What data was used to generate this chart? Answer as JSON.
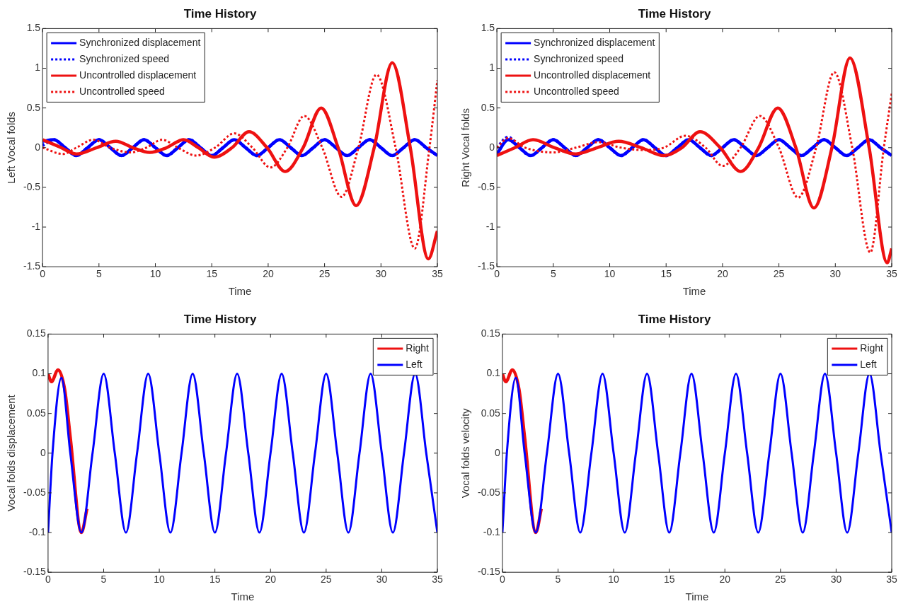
{
  "chart_data": [
    {
      "type": "line",
      "title": "Time History",
      "xlabel": "Time",
      "ylabel": "Left Vocal folds",
      "xlim": [
        0,
        35
      ],
      "xticks": [
        0,
        5,
        10,
        15,
        20,
        25,
        30,
        35
      ],
      "ylim": [
        -1.5,
        1.5
      ],
      "yticks": [
        -1.5,
        -1,
        -0.5,
        0,
        0.5,
        1,
        1.5
      ],
      "legend": "top left",
      "marker": "none",
      "x": [
        0,
        1,
        2,
        3,
        4,
        5,
        6,
        7,
        8,
        9,
        10,
        11,
        12,
        13,
        14,
        15,
        16,
        17,
        18,
        19,
        20,
        21,
        22,
        23,
        24,
        25,
        26,
        27,
        28,
        29,
        30,
        31,
        32,
        33,
        34,
        35
      ],
      "series": [
        {
          "name": "Synchronized displacement",
          "color": "#0000ff",
          "line_style": "solid",
          "values": [
            0.08,
            0.1,
            0,
            -0.1,
            0,
            0.1,
            0,
            -0.1,
            0,
            0.1,
            0,
            -0.1,
            0,
            0.1,
            0,
            -0.1,
            0,
            0.1,
            0,
            -0.1,
            0,
            0.1,
            0,
            -0.1,
            0,
            0.1,
            0,
            -0.1,
            0,
            0.1,
            0,
            -0.1,
            0,
            0.1,
            0,
            -0.1
          ]
        },
        {
          "name": "Synchronized speed",
          "color": "#0000ff",
          "line_style": "dotted",
          "values": [
            0.03,
            0.1,
            0,
            -0.1,
            0,
            0.1,
            0,
            -0.1,
            0,
            0.1,
            0,
            -0.1,
            0,
            0.1,
            0,
            -0.1,
            0,
            0.1,
            0,
            -0.1,
            0,
            0.1,
            0,
            -0.1,
            0,
            0.1,
            0,
            -0.1,
            0,
            0.1,
            0,
            -0.1,
            0,
            0.1,
            0,
            -0.1
          ]
        },
        {
          "name": "Uncontrolled displacement",
          "color": "#ee1111",
          "line_style": "solid",
          "x": [
            0,
            1.5,
            3,
            4.8,
            6.5,
            8,
            9.5,
            11,
            12.5,
            13.8,
            15.2,
            16.8,
            18.3,
            19.9,
            21.5,
            23.1,
            24.7,
            26.2,
            27.8,
            29.4,
            31,
            32.6,
            34.2,
            35
          ],
          "values": [
            0.1,
            0.01,
            -0.08,
            0,
            0.08,
            0,
            -0.06,
            0,
            0.1,
            0,
            -0.12,
            0,
            0.2,
            0,
            -0.3,
            0,
            0.5,
            0,
            -0.73,
            0,
            1.07,
            0,
            -1.4,
            -1.05
          ]
        },
        {
          "name": "Uncontrolled speed",
          "color": "#ee1111",
          "line_style": "dotted",
          "x": [
            0,
            1.8,
            3,
            4.5,
            6,
            7.8,
            9.2,
            10.6,
            12,
            13.6,
            15.3,
            17,
            18.6,
            20.2,
            21.7,
            23.2,
            24.8,
            26.5,
            28,
            29.6,
            31.3,
            33,
            34.3,
            35
          ],
          "values": [
            0,
            -0.08,
            0,
            0.1,
            0,
            -0.06,
            0,
            0.1,
            0,
            -0.1,
            0,
            0.18,
            0,
            -0.25,
            0,
            0.4,
            0,
            -0.62,
            0,
            0.92,
            0,
            -1.27,
            0,
            0.85
          ]
        }
      ]
    },
    {
      "type": "line",
      "title": "Time History",
      "xlabel": "Time",
      "ylabel": "Right Vocal folds",
      "xlim": [
        0,
        35
      ],
      "xticks": [
        0,
        5,
        10,
        15,
        20,
        25,
        30,
        35
      ],
      "ylim": [
        -1.5,
        1.5
      ],
      "yticks": [
        -1.5,
        -1,
        -0.5,
        0,
        0.5,
        1,
        1.5
      ],
      "legend": "top left",
      "marker": "none",
      "x": [
        0,
        1,
        2,
        3,
        4,
        5,
        6,
        7,
        8,
        9,
        10,
        11,
        12,
        13,
        14,
        15,
        16,
        17,
        18,
        19,
        20,
        21,
        22,
        23,
        24,
        25,
        26,
        27,
        28,
        29,
        30,
        31,
        32,
        33,
        34,
        35
      ],
      "series": [
        {
          "name": "Synchronized displacement",
          "color": "#0000ff",
          "line_style": "solid",
          "values": [
            -0.08,
            0.1,
            0,
            -0.1,
            0,
            0.1,
            0,
            -0.1,
            0,
            0.1,
            0,
            -0.1,
            0,
            0.1,
            0,
            -0.1,
            0,
            0.1,
            0,
            -0.1,
            0,
            0.1,
            0,
            -0.1,
            0,
            0.1,
            0,
            -0.1,
            0,
            0.1,
            0,
            -0.1,
            0,
            0.1,
            0,
            -0.1
          ]
        },
        {
          "name": "Synchronized speed",
          "color": "#0000ff",
          "line_style": "dotted",
          "values": [
            0,
            0.13,
            0,
            -0.1,
            0,
            0.1,
            0,
            -0.1,
            0,
            0.1,
            0,
            -0.1,
            0,
            0.1,
            0,
            -0.1,
            0,
            0.1,
            0,
            -0.1,
            0,
            0.1,
            0,
            -0.1,
            0,
            0.1,
            0,
            -0.1,
            0,
            0.1,
            0,
            -0.1,
            0,
            0.1,
            0,
            -0.1
          ]
        },
        {
          "name": "Uncontrolled displacement",
          "color": "#ee1111",
          "line_style": "solid",
          "x": [
            0,
            1.6,
            3.2,
            5.1,
            7,
            8.9,
            10.8,
            12.8,
            14.8,
            16.4,
            18,
            19.8,
            21.6,
            23.2,
            24.9,
            26.5,
            28.1,
            29.7,
            31.3,
            33,
            34.6,
            35
          ],
          "values": [
            -0.1,
            0,
            0.1,
            0,
            -0.08,
            0,
            0.08,
            0,
            -0.1,
            0,
            0.2,
            0,
            -0.3,
            0,
            0.5,
            0,
            -0.76,
            0,
            1.13,
            0,
            -1.45,
            -1.27
          ]
        },
        {
          "name": "Uncontrolled speed",
          "color": "#ee1111",
          "line_style": "dotted",
          "x": [
            0,
            1,
            2.5,
            5,
            7,
            9,
            11,
            13,
            14.8,
            16.7,
            18.5,
            20,
            21.6,
            23.3,
            25,
            26.7,
            28.3,
            29.9,
            31.5,
            33.1,
            34.3,
            35
          ],
          "values": [
            0,
            0.12,
            0,
            -0.06,
            0,
            0.07,
            0,
            -0.03,
            0,
            0.15,
            0,
            -0.23,
            0,
            0.4,
            0,
            -0.63,
            0,
            0.95,
            0,
            -1.32,
            0,
            0.68
          ]
        }
      ]
    },
    {
      "type": "line",
      "title": "Time History",
      "xlabel": "Time",
      "ylabel": "Vocal folds displacement",
      "xlim": [
        0,
        35
      ],
      "xticks": [
        0,
        5,
        10,
        15,
        20,
        25,
        30,
        35
      ],
      "ylim": [
        -0.15,
        0.15
      ],
      "yticks": [
        -0.15,
        -0.1,
        -0.05,
        0,
        0.05,
        0.1,
        0.15
      ],
      "legend": "top right",
      "marker": "none",
      "series": [
        {
          "name": "Right",
          "color": "#ee1111",
          "x": [
            0,
            0.3,
            0.9,
            1.5,
            2,
            3,
            3.5
          ],
          "values": [
            0.1,
            0.09,
            0.105,
            0.08,
            0.02,
            -0.1,
            -0.07
          ]
        },
        {
          "name": "Left",
          "color": "#0000ff",
          "x": [
            0,
            0.4,
            1.2,
            2,
            3,
            4,
            5,
            6,
            7,
            8,
            9,
            10,
            11,
            12,
            13,
            14,
            15,
            16,
            17,
            18,
            19,
            20,
            21,
            22,
            23,
            24,
            25,
            26,
            27,
            28,
            29,
            30,
            31,
            32,
            33,
            34,
            35
          ],
          "values": [
            -0.1,
            0,
            0.095,
            0,
            -0.1,
            0,
            0.1,
            0,
            -0.1,
            0,
            0.1,
            0,
            -0.1,
            0,
            0.1,
            0,
            -0.1,
            0,
            0.1,
            0,
            -0.1,
            0,
            0.1,
            0,
            -0.1,
            0,
            0.1,
            0,
            -0.1,
            0,
            0.1,
            0,
            -0.1,
            0,
            0.1,
            0,
            -0.1
          ]
        }
      ]
    },
    {
      "type": "line",
      "title": "Time History",
      "xlabel": "Time",
      "ylabel": "Vocal folds velocity",
      "xlim": [
        0,
        35
      ],
      "xticks": [
        0,
        5,
        10,
        15,
        20,
        25,
        30,
        35
      ],
      "ylim": [
        -0.15,
        0.15
      ],
      "yticks": [
        -0.15,
        -0.1,
        -0.05,
        0,
        0.05,
        0.1,
        0.15
      ],
      "legend": "top right",
      "marker": "none",
      "series": [
        {
          "name": "Right",
          "color": "#ee1111",
          "x": [
            0,
            0.3,
            0.9,
            1.5,
            2,
            3,
            3.5
          ],
          "values": [
            0.1,
            0.09,
            0.105,
            0.08,
            0.02,
            -0.1,
            -0.07
          ]
        },
        {
          "name": "Left",
          "color": "#0000ff",
          "x": [
            0,
            0.4,
            1.2,
            2,
            3,
            4,
            5,
            6,
            7,
            8,
            9,
            10,
            11,
            12,
            13,
            14,
            15,
            16,
            17,
            18,
            19,
            20,
            21,
            22,
            23,
            24,
            25,
            26,
            27,
            28,
            29,
            30,
            31,
            32,
            33,
            34,
            35
          ],
          "values": [
            -0.1,
            0,
            0.095,
            0,
            -0.1,
            0,
            0.1,
            0,
            -0.1,
            0,
            0.1,
            0,
            -0.1,
            0,
            0.1,
            0,
            -0.1,
            0,
            0.1,
            0,
            -0.1,
            0,
            0.1,
            0,
            -0.1,
            0,
            0.1,
            0,
            -0.1,
            0,
            0.1,
            0,
            -0.1,
            0,
            0.1,
            0,
            -0.1
          ]
        }
      ]
    }
  ]
}
